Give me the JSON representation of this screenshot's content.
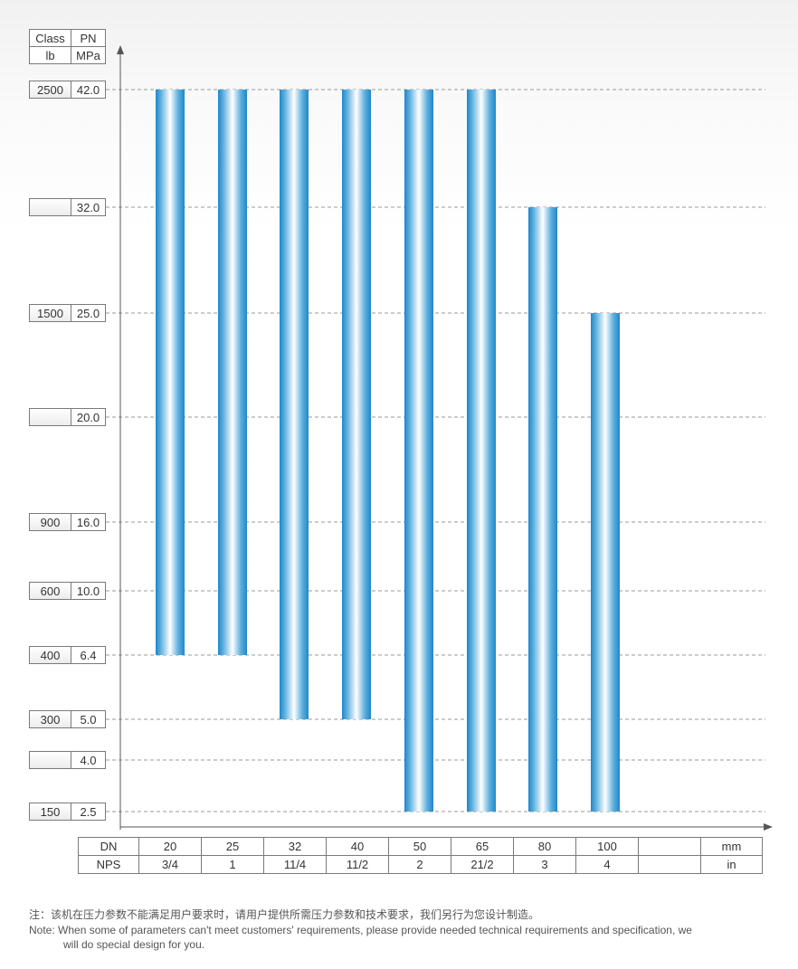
{
  "header": {
    "class_label": "Class",
    "pn_label": "PN",
    "lb_label": "lb",
    "mpa_label": "MPa"
  },
  "y_rows": [
    {
      "class": "2500",
      "pn": "42.0"
    },
    {
      "class": "",
      "pn": "32.0"
    },
    {
      "class": "1500",
      "pn": "25.0"
    },
    {
      "class": "",
      "pn": "20.0"
    },
    {
      "class": "900",
      "pn": "16.0"
    },
    {
      "class": "600",
      "pn": "10.0"
    },
    {
      "class": "400",
      "pn": "6.4"
    },
    {
      "class": "300",
      "pn": "5.0"
    },
    {
      "class": "",
      "pn": "4.0"
    },
    {
      "class": "150",
      "pn": "2.5"
    }
  ],
  "x_table": {
    "dn_label": "DN",
    "nps_label": "NPS",
    "dn": [
      "20",
      "25",
      "32",
      "40",
      "50",
      "65",
      "80",
      "100",
      ""
    ],
    "nps": [
      "3/4",
      "1",
      "11/4",
      "11/2",
      "2",
      "21/2",
      "3",
      "4",
      ""
    ],
    "unit_mm": "mm",
    "unit_in": "in"
  },
  "chart_data": {
    "type": "bar",
    "categories": [
      "20",
      "25",
      "32",
      "40",
      "50",
      "65",
      "80",
      "100"
    ],
    "series": [
      {
        "low": 6.4,
        "high": 42.0
      },
      {
        "low": 6.4,
        "high": 42.0
      },
      {
        "low": 5.0,
        "high": 42.0
      },
      {
        "low": 5.0,
        "high": 42.0
      },
      {
        "low": 2.5,
        "high": 42.0
      },
      {
        "low": 2.5,
        "high": 42.0
      },
      {
        "low": 2.5,
        "high": 32.0
      },
      {
        "low": 2.5,
        "high": 25.0
      }
    ],
    "y_ticks": [
      42.0,
      32.0,
      25.0,
      20.0,
      16.0,
      10.0,
      6.4,
      5.0,
      4.0,
      2.5
    ],
    "bar_color": "#1f87c9",
    "grid": true
  },
  "notes": {
    "cn": "注：该机在压力参数不能满足用户要求时，请用户提供所需压力参数和技术要求，我们另行为您设计制造。",
    "en_line1": "Note: When some of parameters can't meet customers' requirements, please provide needed technical requirements and specification, we",
    "en_line2": "will do special design for you."
  }
}
